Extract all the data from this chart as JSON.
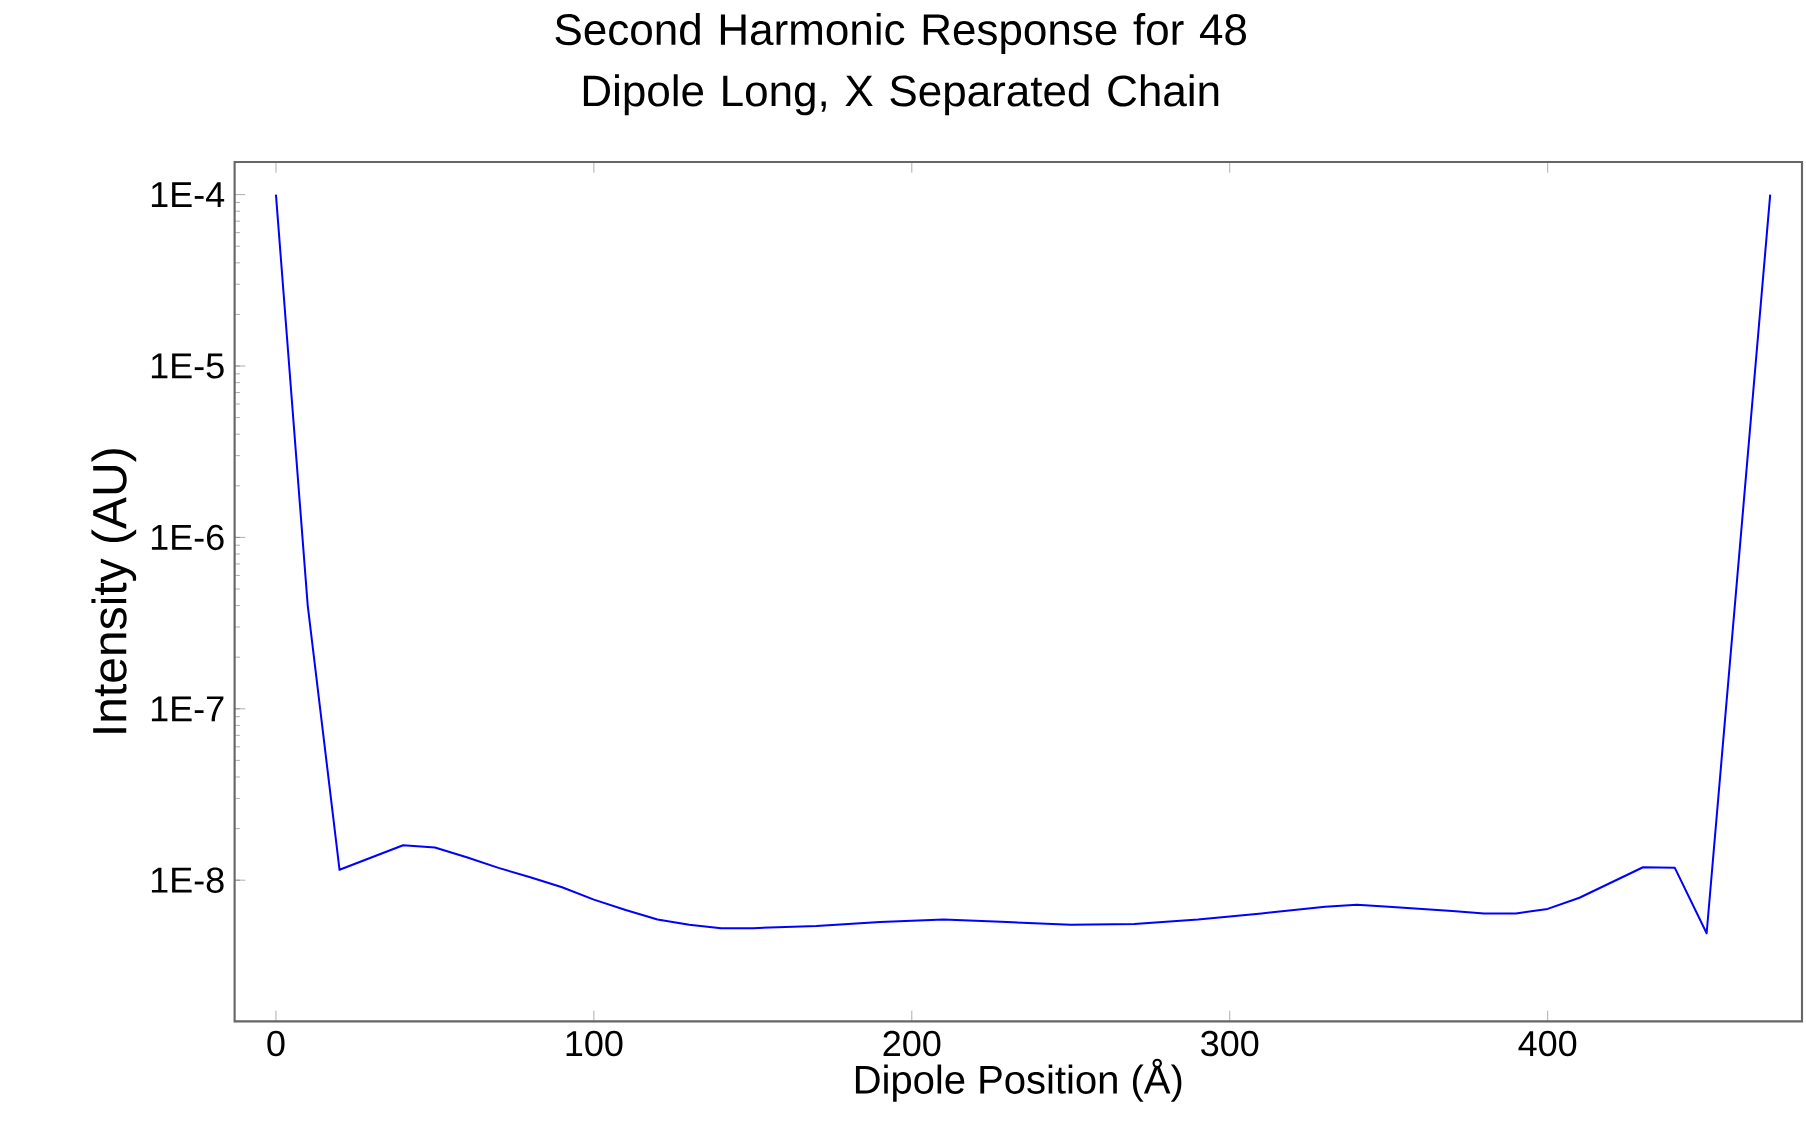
{
  "chart_data": {
    "type": "line",
    "title": "Second Harmonic Response for 48 Dipole Long, X Separated Chain",
    "xlabel": "Dipole Position  (Å)",
    "ylabel": "Intensity (AU)",
    "log": "y",
    "xlim": [
      -13,
      480
    ],
    "xticks": [
      0,
      100,
      200,
      300,
      400
    ],
    "ylim": [
      1.5e-09,
      0.000155
    ],
    "yticks": [
      {
        "value": 1e-08,
        "label": "1E-8"
      },
      {
        "value": 1e-07,
        "label": "1E-7"
      },
      {
        "value": 1e-06,
        "label": "1E-6"
      },
      {
        "value": 1e-05,
        "label": "1E-5"
      },
      {
        "value": 0.0001,
        "label": "1E-4"
      }
    ],
    "series": [
      {
        "color": "#0000ff",
        "x": [
          0,
          10,
          20,
          40,
          50,
          60,
          70,
          80,
          90,
          100,
          110,
          120,
          130,
          140,
          150,
          170,
          190,
          210,
          230,
          250,
          270,
          290,
          310,
          330,
          340,
          350,
          370,
          380,
          390,
          400,
          410,
          430,
          440,
          450,
          470
        ],
        "values": [
          0.0001,
          4e-07,
          1.15e-08,
          1.6e-08,
          1.55e-08,
          1.36e-08,
          1.18e-08,
          1.04e-08,
          9.1e-09,
          7.7e-09,
          6.7e-09,
          5.9e-09,
          5.5e-09,
          5.25e-09,
          5.25e-09,
          5.4e-09,
          5.7e-09,
          5.9e-09,
          5.7e-09,
          5.5e-09,
          5.55e-09,
          5.9e-09,
          6.4e-09,
          7e-09,
          7.2e-09,
          7e-09,
          6.6e-09,
          6.4e-09,
          6.4e-09,
          6.8e-09,
          7.9e-09,
          1.19e-08,
          1.18e-08,
          4.9e-09,
          0.0001
        ]
      }
    ]
  }
}
